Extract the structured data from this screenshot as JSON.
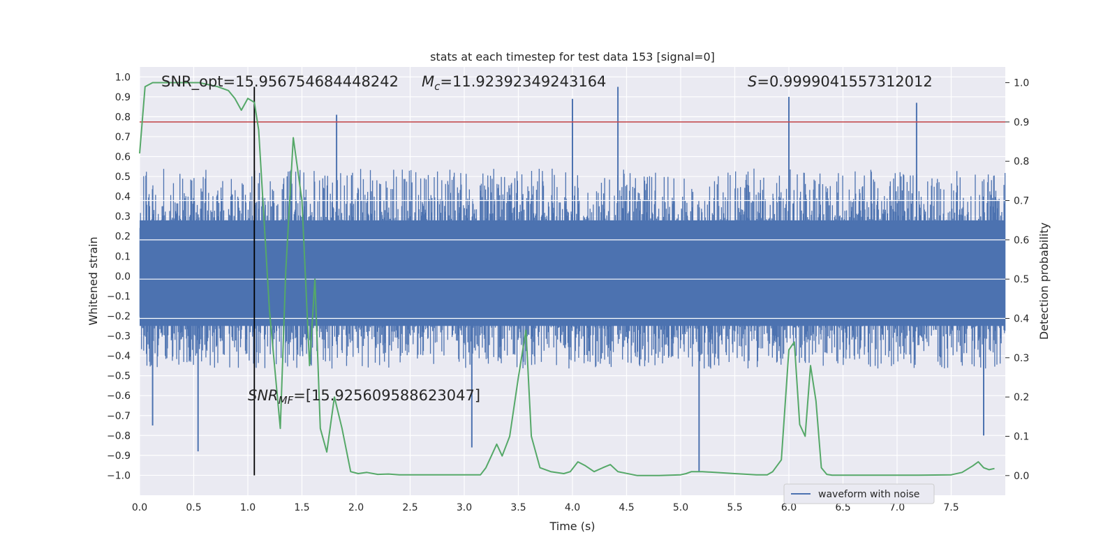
{
  "chart_data": {
    "type": "line",
    "title": "stats at each timestep for test data 153 [signal=0]",
    "xlabel": "Time (s)",
    "ylabel": "Whitened strain",
    "y2label": "Detection probability",
    "xlim": [
      0,
      8
    ],
    "ylim": [
      -1.1,
      1.05
    ],
    "y2lim": [
      -0.05,
      1.04
    ],
    "xticks": [
      "0.0",
      "0.5",
      "1.0",
      "1.5",
      "2.0",
      "2.5",
      "3.0",
      "3.5",
      "4.0",
      "4.5",
      "5.0",
      "5.5",
      "6.0",
      "6.5",
      "7.0",
      "7.5"
    ],
    "yticks": [
      "1.0",
      "0.9",
      "0.8",
      "0.7",
      "0.6",
      "0.5",
      "0.4",
      "0.3",
      "0.2",
      "0.1",
      "0.0",
      "−0.1",
      "−0.2",
      "−0.3",
      "−0.4",
      "−0.5",
      "−0.6",
      "−0.7",
      "−0.8",
      "−0.9",
      "−1.0"
    ],
    "y2ticks": [
      "1.0",
      "0.9",
      "0.8",
      "0.7",
      "0.6",
      "0.5",
      "0.4",
      "0.3",
      "0.2",
      "0.1",
      "0.0"
    ],
    "grid": true,
    "legend": {
      "placement": "lower-right",
      "entries": [
        "waveform with noise"
      ]
    },
    "annotations": {
      "snr_opt": "SNR_opt=15.956754684448242",
      "mc_symbol": "M",
      "mc_sub": "c",
      "mc_value": "=11.92392349243164",
      "s_symbol": "S",
      "s_value": "=0.9999041557312012",
      "snrmf_symbol": "SNR",
      "snrmf_sub": "MF",
      "snrmf_value": "=[15.925609588623047]"
    },
    "threshold": 0.9,
    "marker_time": 1.06,
    "waveform": {
      "name": "waveform with noise",
      "color": "#4c72b0",
      "duration": 8.0,
      "samples": 1600,
      "positive_envelope": 0.5,
      "negative_envelope": -0.42,
      "notable_spikes": [
        {
          "t": 1.82,
          "y": 0.81
        },
        {
          "t": 4.0,
          "y": 0.89
        },
        {
          "t": 4.42,
          "y": 0.95
        },
        {
          "t": 6.0,
          "y": 0.9
        },
        {
          "t": 7.18,
          "y": 0.87
        },
        {
          "t": 5.17,
          "y": -0.98
        },
        {
          "t": 0.54,
          "y": -0.88
        },
        {
          "t": 3.07,
          "y": -0.86
        },
        {
          "t": 0.12,
          "y": -0.75
        },
        {
          "t": 7.8,
          "y": -0.8
        }
      ]
    },
    "probability": {
      "color": "#55a868",
      "x": [
        0.0,
        0.05,
        0.12,
        0.3,
        0.55,
        0.72,
        0.82,
        0.88,
        0.94,
        1.0,
        1.06,
        1.1,
        1.2,
        1.3,
        1.35,
        1.42,
        1.5,
        1.57,
        1.62,
        1.67,
        1.73,
        1.8,
        1.87,
        1.95,
        2.02,
        2.1,
        2.2,
        2.3,
        2.4,
        2.6,
        2.8,
        3.0,
        3.15,
        3.2,
        3.25,
        3.3,
        3.35,
        3.42,
        3.5,
        3.57,
        3.62,
        3.7,
        3.8,
        3.92,
        3.98,
        4.05,
        4.12,
        4.2,
        4.28,
        4.35,
        4.42,
        4.6,
        4.8,
        5.0,
        5.05,
        5.1,
        5.2,
        5.5,
        5.7,
        5.8,
        5.85,
        5.93,
        6.0,
        6.05,
        6.1,
        6.15,
        6.2,
        6.25,
        6.3,
        6.35,
        6.4,
        6.6,
        6.8,
        7.0,
        7.2,
        7.5,
        7.6,
        7.7,
        7.75,
        7.8,
        7.85,
        7.9
      ],
      "y": [
        0.82,
        0.99,
        1.0,
        1.0,
        1.0,
        0.99,
        0.98,
        0.96,
        0.93,
        0.96,
        0.95,
        0.88,
        0.42,
        0.12,
        0.52,
        0.86,
        0.7,
        0.28,
        0.5,
        0.12,
        0.06,
        0.2,
        0.12,
        0.01,
        0.005,
        0.008,
        0.003,
        0.004,
        0.002,
        0.002,
        0.002,
        0.002,
        0.002,
        0.02,
        0.05,
        0.08,
        0.05,
        0.1,
        0.25,
        0.37,
        0.1,
        0.02,
        0.01,
        0.005,
        0.01,
        0.035,
        0.025,
        0.01,
        0.02,
        0.028,
        0.01,
        0.0,
        0.0,
        0.002,
        0.005,
        0.01,
        0.01,
        0.005,
        0.002,
        0.002,
        0.01,
        0.04,
        0.32,
        0.34,
        0.13,
        0.1,
        0.28,
        0.19,
        0.02,
        0.003,
        0.001,
        0.001,
        0.001,
        0.001,
        0.001,
        0.002,
        0.008,
        0.025,
        0.035,
        0.02,
        0.015,
        0.018
      ]
    }
  }
}
